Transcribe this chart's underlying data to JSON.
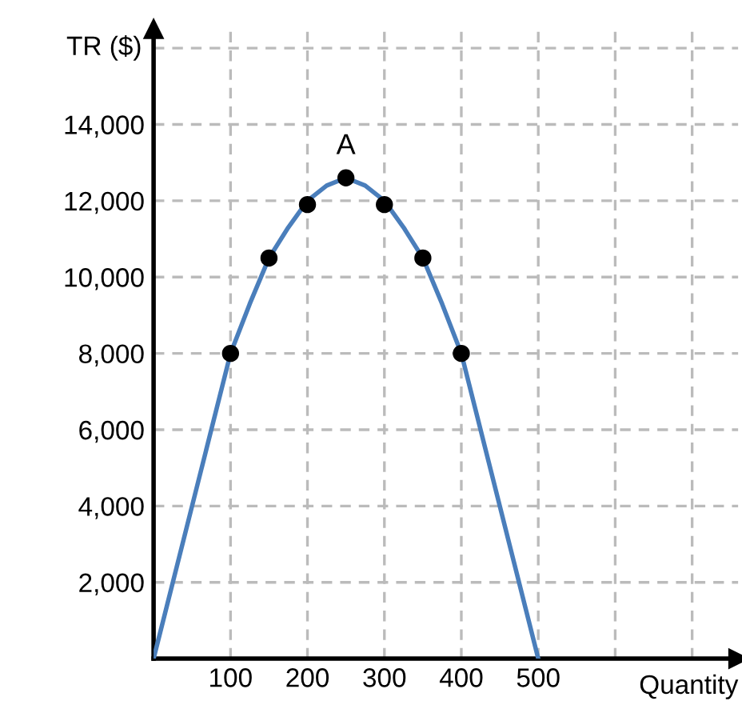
{
  "chart_data": {
    "type": "line",
    "xlabel": "Quantity",
    "ylabel": "TR ($)",
    "xlim": [
      0,
      760
    ],
    "ylim": [
      0,
      16500
    ],
    "xticks": [
      100,
      200,
      300,
      400,
      500,
      {
        "value": 600,
        "label": null
      },
      {
        "value": 700,
        "label": null
      }
    ],
    "yticks": [
      {
        "value": 2000,
        "label": "2,000"
      },
      {
        "value": 4000,
        "label": "4,000"
      },
      {
        "value": 6000,
        "label": "6,000"
      },
      {
        "value": 8000,
        "label": "8,000"
      },
      {
        "value": 10000,
        "label": "10,000"
      },
      {
        "value": 12000,
        "label": "12,000"
      },
      {
        "value": 14000,
        "label": "14,000"
      },
      {
        "value": 16000,
        "label": null
      }
    ],
    "grid": true,
    "line_style": "solid",
    "series": [
      {
        "color": "#4a7ebb",
        "marker": "none",
        "x": [
          0,
          100,
          125,
          150,
          175,
          200,
          225,
          250,
          275,
          300,
          325,
          350,
          375,
          400,
          500
        ],
        "values": [
          0,
          8000,
          9300,
          10500,
          11300,
          12000,
          12400,
          12600,
          12400,
          12000,
          11300,
          10500,
          9300,
          8000,
          0
        ]
      },
      {
        "type": "scatter",
        "color": "#000000",
        "marker": "circle",
        "x": [
          100,
          150,
          200,
          250,
          300,
          350,
          400
        ],
        "values": [
          8000,
          10500,
          11900,
          12600,
          11900,
          10500,
          8000
        ]
      }
    ],
    "annotations": [
      {
        "text": "A",
        "x": 250,
        "y": 12600
      }
    ]
  }
}
